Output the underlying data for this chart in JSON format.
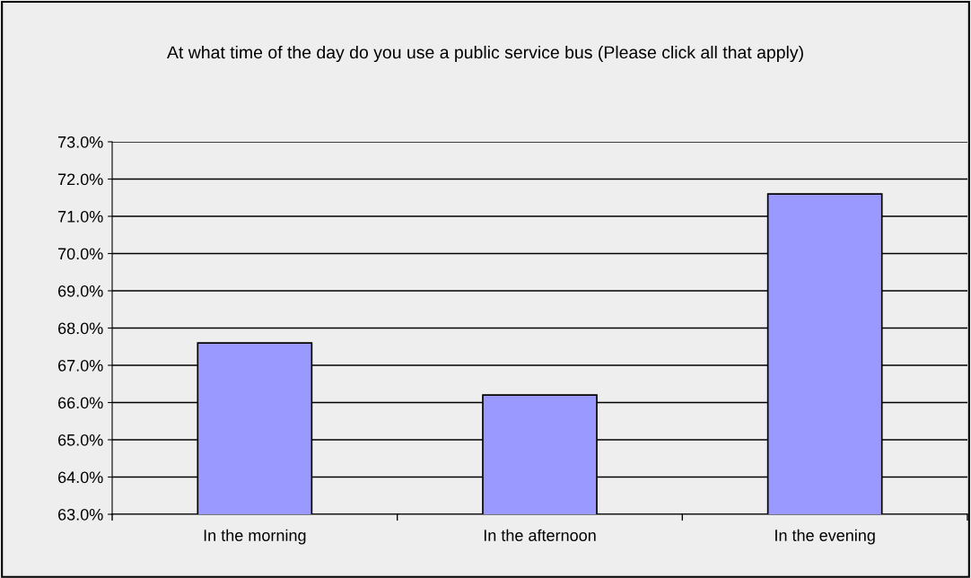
{
  "chart_data": {
    "type": "bar",
    "title": "At what time of the day do you use a public service bus (Please click all that apply)",
    "categories": [
      "In the morning",
      "In the afternoon",
      "In the evening"
    ],
    "values": [
      67.6,
      66.2,
      71.6
    ],
    "color": "#9999ff",
    "ylim": [
      63,
      73
    ],
    "yticks": [
      {
        "value": 63,
        "label": "63.0%"
      },
      {
        "value": 64,
        "label": "64.0%"
      },
      {
        "value": 65,
        "label": "65.0%"
      },
      {
        "value": 66,
        "label": "66.0%"
      },
      {
        "value": 67,
        "label": "67.0%"
      },
      {
        "value": 68,
        "label": "68.0%"
      },
      {
        "value": 69,
        "label": "69.0%"
      },
      {
        "value": 70,
        "label": "70.0%"
      },
      {
        "value": 71,
        "label": "71.0%"
      },
      {
        "value": 72,
        "label": "72.0%"
      },
      {
        "value": 73,
        "label": "73.0%"
      }
    ],
    "grid": "y",
    "legend": false
  }
}
